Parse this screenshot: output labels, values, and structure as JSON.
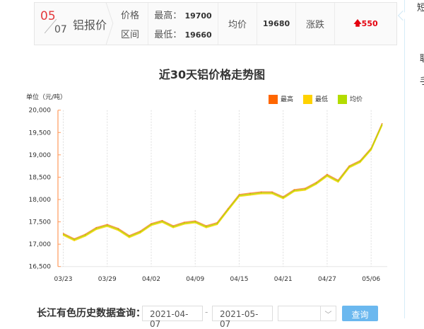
{
  "header": {
    "month": "05",
    "day": "07",
    "name": "铝报价",
    "label_price": "价格",
    "label_range": "区间",
    "high_label": "最高：",
    "high": "19700",
    "low_label": "最低：",
    "low": "19660",
    "avg_label": "均价",
    "avg": "19680",
    "change_label": "涨跌",
    "change": "550",
    "change_icon": "arrow-up-icon",
    "change_color": "#e4000f"
  },
  "side": {
    "items": [
      "短",
      "联",
      "手"
    ]
  },
  "query": {
    "label": "长江有色历史数据查询：",
    "start": "2021-04-07",
    "sep": "-",
    "end": "2021-05-07",
    "select": "",
    "button": "查询"
  },
  "chart_data": {
    "type": "line",
    "title": "近30天铝价格走势图",
    "ylabel": "单位（元/吨）",
    "ylim": [
      16500,
      20000
    ],
    "yticks": [
      "16,500",
      "17,000",
      "17,500",
      "18,000",
      "18,500",
      "19,000",
      "19,500",
      "20,000"
    ],
    "ytick_values": [
      16500,
      17000,
      17500,
      18000,
      18500,
      19000,
      19500,
      20000
    ],
    "xticks": [
      "03/23",
      "03/29",
      "04/02",
      "04/09",
      "04/15",
      "04/21",
      "04/27",
      "05/06"
    ],
    "xtick_index": [
      0,
      4,
      8,
      12,
      16,
      20,
      24,
      28
    ],
    "x": [
      "03/23",
      "03/24",
      "03/25",
      "03/26",
      "03/29",
      "03/30",
      "03/31",
      "04/01",
      "04/02",
      "04/06",
      "04/07",
      "04/08",
      "04/09",
      "04/12",
      "04/13",
      "04/14",
      "04/15",
      "04/16",
      "04/19",
      "04/20",
      "04/21",
      "04/22",
      "04/23",
      "04/26",
      "04/27",
      "04/28",
      "04/29",
      "04/30",
      "05/06",
      "05/07"
    ],
    "grid": "vertical dashed",
    "legend": "top-right",
    "series": [
      {
        "name": "最高",
        "color": "#ff6600",
        "values": [
          17240,
          17120,
          17220,
          17370,
          17440,
          17350,
          17190,
          17290,
          17460,
          17530,
          17410,
          17490,
          17520,
          17410,
          17480,
          17800,
          18110,
          18140,
          18170,
          18170,
          18060,
          18220,
          18250,
          18380,
          18560,
          18430,
          18750,
          18870,
          19150,
          19700
        ]
      },
      {
        "name": "最低",
        "color": "#ffd200",
        "values": [
          17200,
          17080,
          17180,
          17330,
          17400,
          17310,
          17150,
          17250,
          17420,
          17490,
          17370,
          17450,
          17480,
          17370,
          17440,
          17760,
          18070,
          18100,
          18130,
          18130,
          18020,
          18180,
          18210,
          18340,
          18520,
          18390,
          18710,
          18830,
          19110,
          19660
        ]
      },
      {
        "name": "均价",
        "color": "#b3dc00",
        "values": [
          17220,
          17100,
          17200,
          17350,
          17420,
          17330,
          17170,
          17270,
          17440,
          17510,
          17390,
          17470,
          17500,
          17390,
          17460,
          17780,
          18090,
          18120,
          18150,
          18150,
          18040,
          18200,
          18230,
          18360,
          18540,
          18410,
          18730,
          18850,
          19130,
          19680
        ]
      }
    ]
  }
}
